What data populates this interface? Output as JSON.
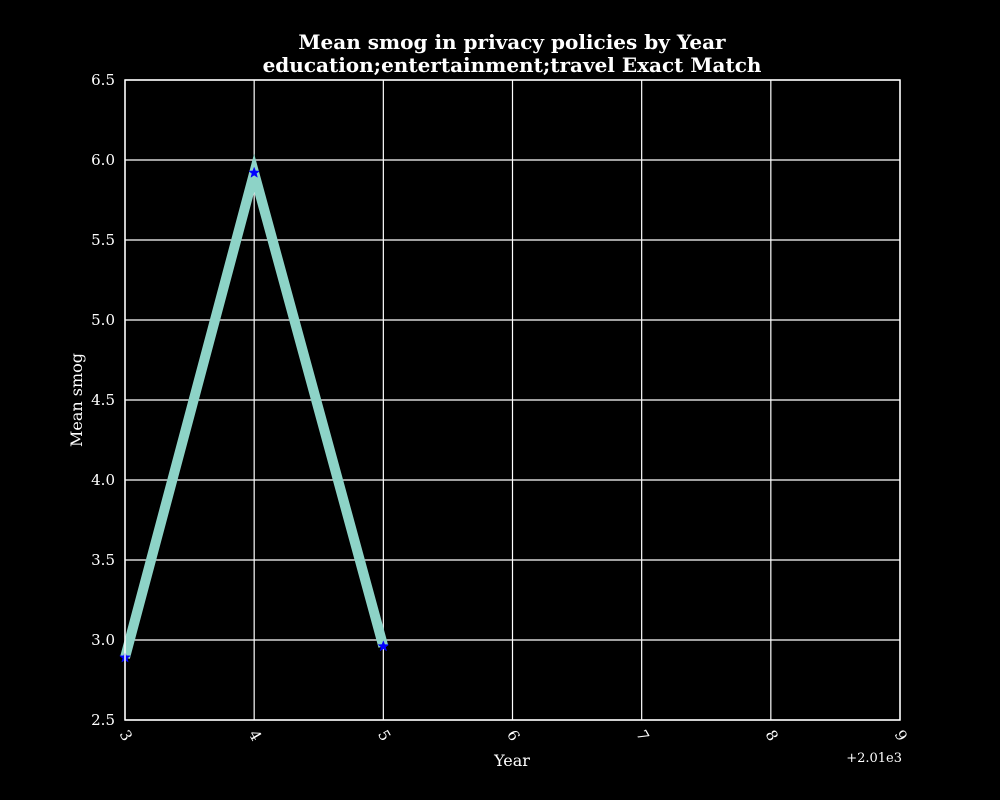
{
  "chart_data": {
    "type": "line",
    "title": [
      "Mean smog in privacy policies by Year",
      "education;entertainment;travel Exact Match"
    ],
    "xlabel": "Year",
    "ylabel": "Mean smog",
    "x_offset_label": "+2.01e3",
    "xlim": [
      2013,
      2019
    ],
    "ylim": [
      2.5,
      6.5
    ],
    "x_ticks": [
      2013,
      2014,
      2015,
      2016,
      2017,
      2018,
      2019
    ],
    "x_tick_labels": [
      "3",
      "4",
      "5",
      "6",
      "7",
      "8",
      "9"
    ],
    "y_ticks": [
      2.5,
      3.0,
      3.5,
      4.0,
      4.5,
      5.0,
      5.5,
      6.0,
      6.5
    ],
    "y_tick_labels": [
      "2.5",
      "3.0",
      "3.5",
      "4.0",
      "4.5",
      "5.0",
      "5.5",
      "6.0",
      "6.5"
    ],
    "grid": true,
    "series": [
      {
        "x": [
          2013,
          2014,
          2015
        ],
        "values": [
          2.89,
          5.92,
          2.96
        ],
        "line_color": "#8dd3c7",
        "marker": "star",
        "marker_color": "#0000ff"
      }
    ]
  },
  "colors": {
    "background": "#000000",
    "foreground": "#ffffff"
  }
}
